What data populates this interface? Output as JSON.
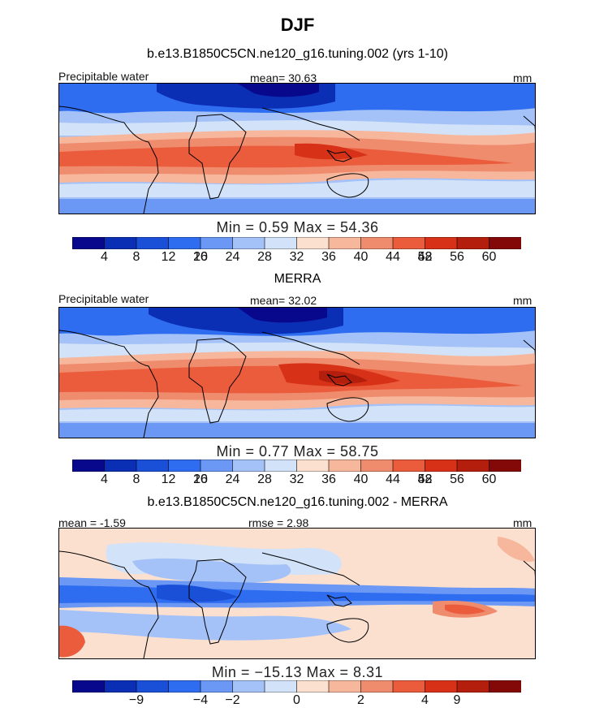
{
  "title": "DJF",
  "colors": {
    "scale": [
      "#08088c",
      "#0a2eb4",
      "#1a4fd8",
      "#2e6cf0",
      "#6a98f4",
      "#a4c2f8",
      "#d2e2f8",
      "#fbe0d0",
      "#f6b79c",
      "#f08c6e",
      "#ea5c3c",
      "#d73218",
      "#b41e0c",
      "#830808"
    ],
    "coast": "#000000"
  },
  "panels": [
    {
      "subtitle": "b.e13.B1850C5CN.ne120_g16.tuning.002 (yrs 1-10)",
      "left_label": "Precipitable water",
      "center_label": "mean=  30.63",
      "right_label": "mm",
      "minmax": "Min =    0.59  Max =   54.36",
      "colorbar_ticks": [
        "4",
        "8",
        "12",
        "16",
        "20",
        "24",
        "28",
        "32",
        "36",
        "40",
        "44",
        "48",
        "52",
        "56",
        "60"
      ]
    },
    {
      "subtitle": "MERRA",
      "left_label": "Precipitable water",
      "center_label": "mean=  32.02",
      "right_label": "mm",
      "minmax": "Min =    0.77  Max =   58.75",
      "colorbar_ticks": [
        "4",
        "8",
        "12",
        "16",
        "20",
        "24",
        "28",
        "32",
        "36",
        "40",
        "44",
        "48",
        "52",
        "56",
        "60"
      ]
    },
    {
      "subtitle": "b.e13.B1850C5CN.ne120_g16.tuning.002 - MERRA",
      "left_label": "mean = -1.59",
      "center_label": "rmse =   2.98",
      "right_label": "mm",
      "minmax": "Min = −15.13  Max =    8.31",
      "colorbar_ticks": [
        "−9",
        "−4",
        "−2",
        "0",
        "2",
        "4",
        "9"
      ]
    }
  ],
  "chart_data": [
    {
      "type": "heatmap",
      "title": "b.e13.B1850C5CN.ne120_g16.tuning.002 (yrs 1-10)",
      "variable": "Precipitable water",
      "units": "mm",
      "mean": 30.63,
      "min": 0.59,
      "max": 54.36,
      "colorbar_levels": [
        4,
        8,
        12,
        16,
        20,
        24,
        28,
        32,
        36,
        40,
        44,
        48,
        52,
        56,
        60
      ]
    },
    {
      "type": "heatmap",
      "title": "MERRA",
      "variable": "Precipitable water",
      "units": "mm",
      "mean": 32.02,
      "min": 0.77,
      "max": 58.75,
      "colorbar_levels": [
        4,
        8,
        12,
        16,
        20,
        24,
        28,
        32,
        36,
        40,
        44,
        48,
        52,
        56,
        60
      ]
    },
    {
      "type": "heatmap",
      "title": "b.e13.B1850C5CN.ne120_g16.tuning.002 - MERRA",
      "units": "mm",
      "mean": -1.59,
      "rmse": 2.98,
      "min": -15.13,
      "max": 8.31,
      "colorbar_levels": [
        -9,
        -4,
        -2,
        0,
        2,
        4,
        9
      ]
    }
  ]
}
